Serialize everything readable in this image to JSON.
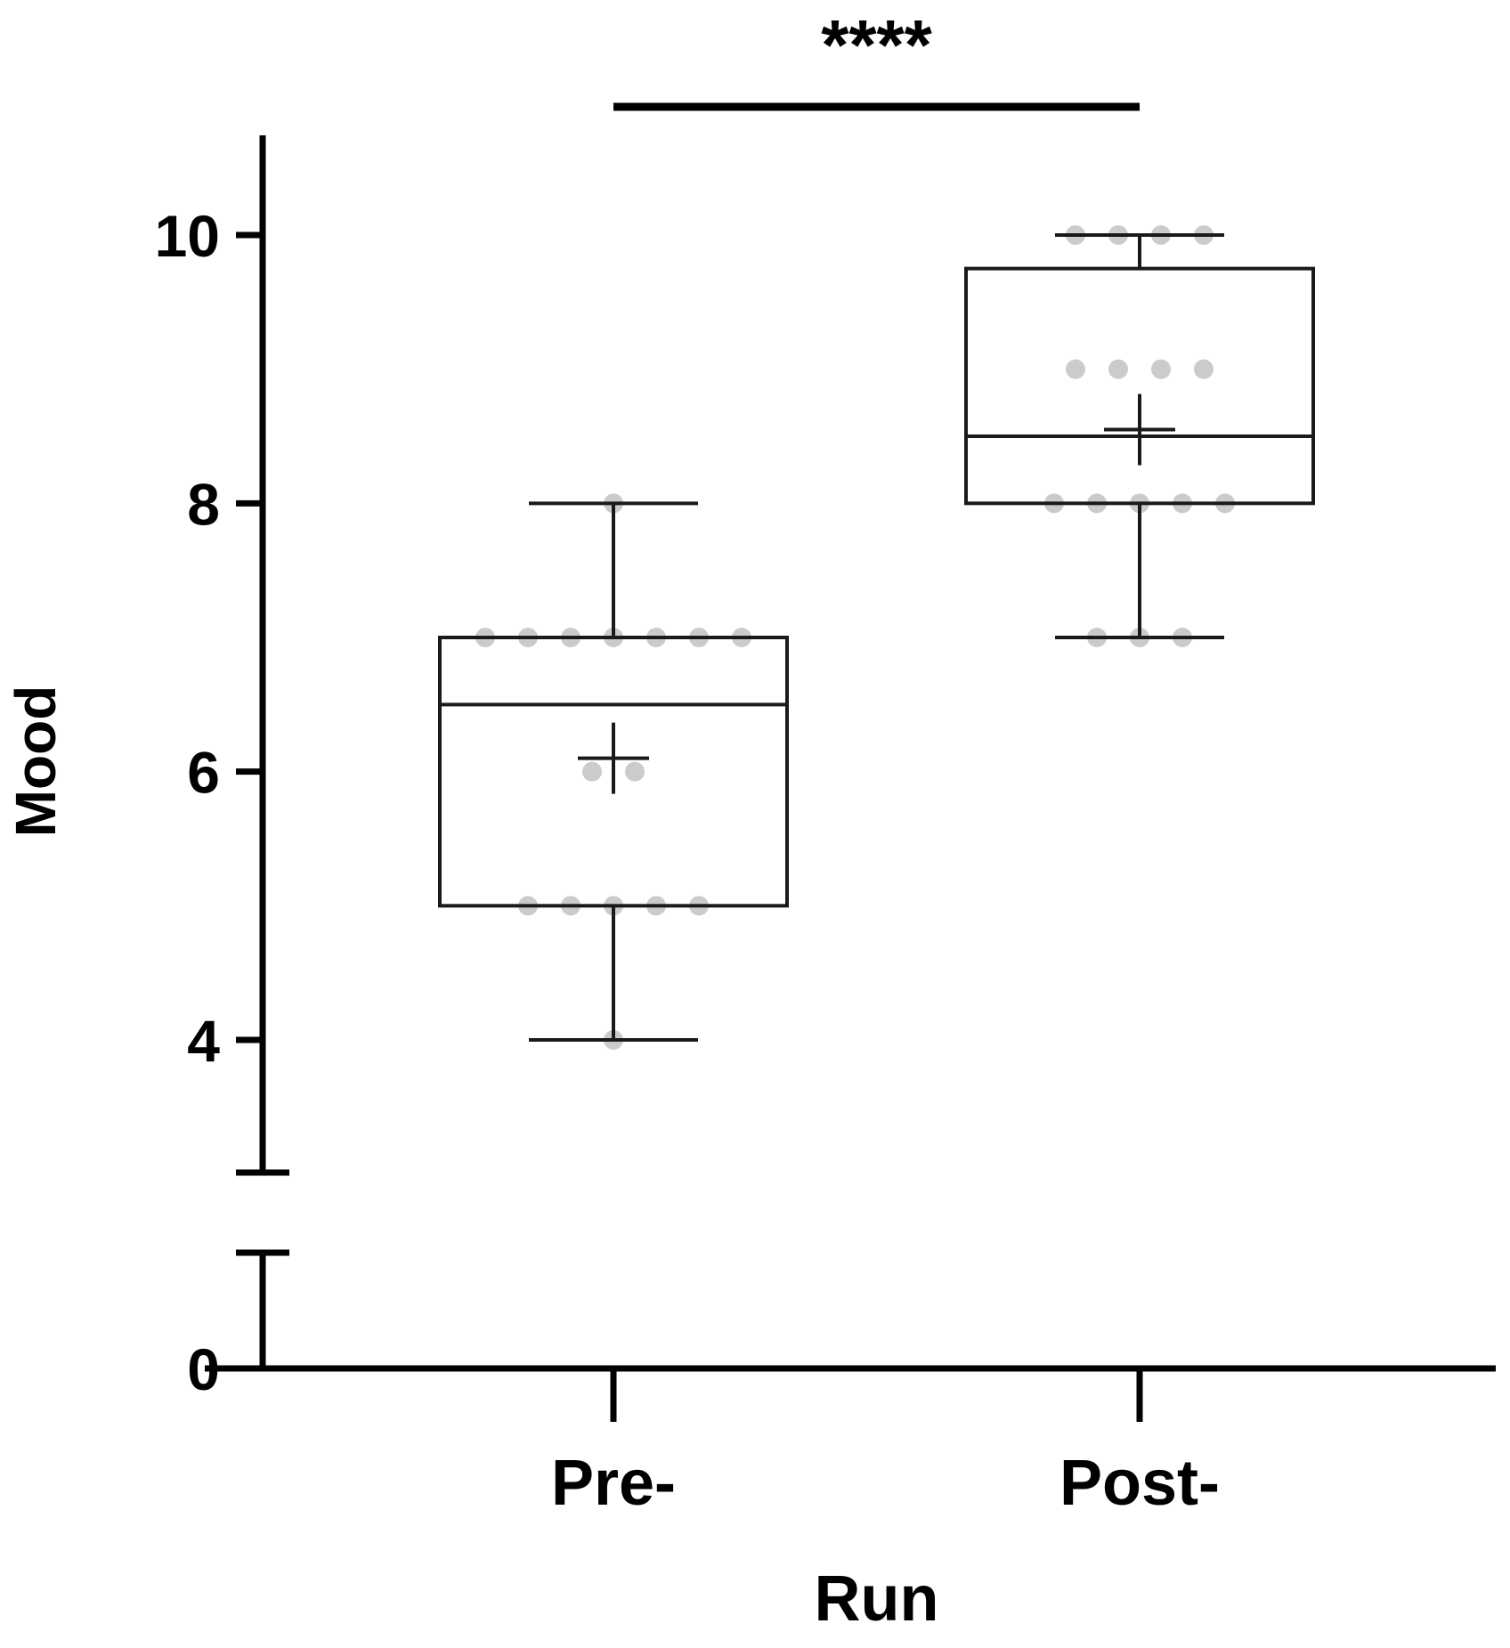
{
  "chart_data": {
    "type": "box",
    "title": "",
    "xlabel": "Run",
    "ylabel": "Mood",
    "categories": [
      "Pre-",
      "Post-"
    ],
    "y_ticks": [
      "0",
      "4",
      "6",
      "8",
      "10"
    ],
    "y_tick_values": [
      0,
      4,
      6,
      8,
      10
    ],
    "y_axis_break": {
      "lower_segment": [
        0,
        1
      ],
      "upper_segment": [
        3,
        10.7
      ]
    },
    "significance": {
      "label": "****",
      "between": [
        "Pre-",
        "Post-"
      ]
    },
    "series": [
      {
        "category": "Pre-",
        "whisker_min": 4,
        "q1": 5,
        "median": 6.5,
        "q3": 7,
        "whisker_max": 8,
        "mean": 6.1,
        "points": [
          {
            "y": 8,
            "count": 1
          },
          {
            "y": 7,
            "count": 7
          },
          {
            "y": 6,
            "count": 2
          },
          {
            "y": 5,
            "count": 5
          },
          {
            "y": 4,
            "count": 1
          }
        ]
      },
      {
        "category": "Post-",
        "whisker_min": 7,
        "q1": 8,
        "median": 8.5,
        "q3": 9.75,
        "whisker_max": 10,
        "mean": 8.55,
        "points": [
          {
            "y": 10,
            "count": 4
          },
          {
            "y": 9,
            "count": 4
          },
          {
            "y": 8,
            "count": 5
          },
          {
            "y": 7,
            "count": 3
          }
        ]
      }
    ],
    "colors": {
      "box": "#1a1a1a",
      "points": "#c8c8c8",
      "axis": "#000000"
    },
    "grid": false,
    "legend": "none"
  }
}
